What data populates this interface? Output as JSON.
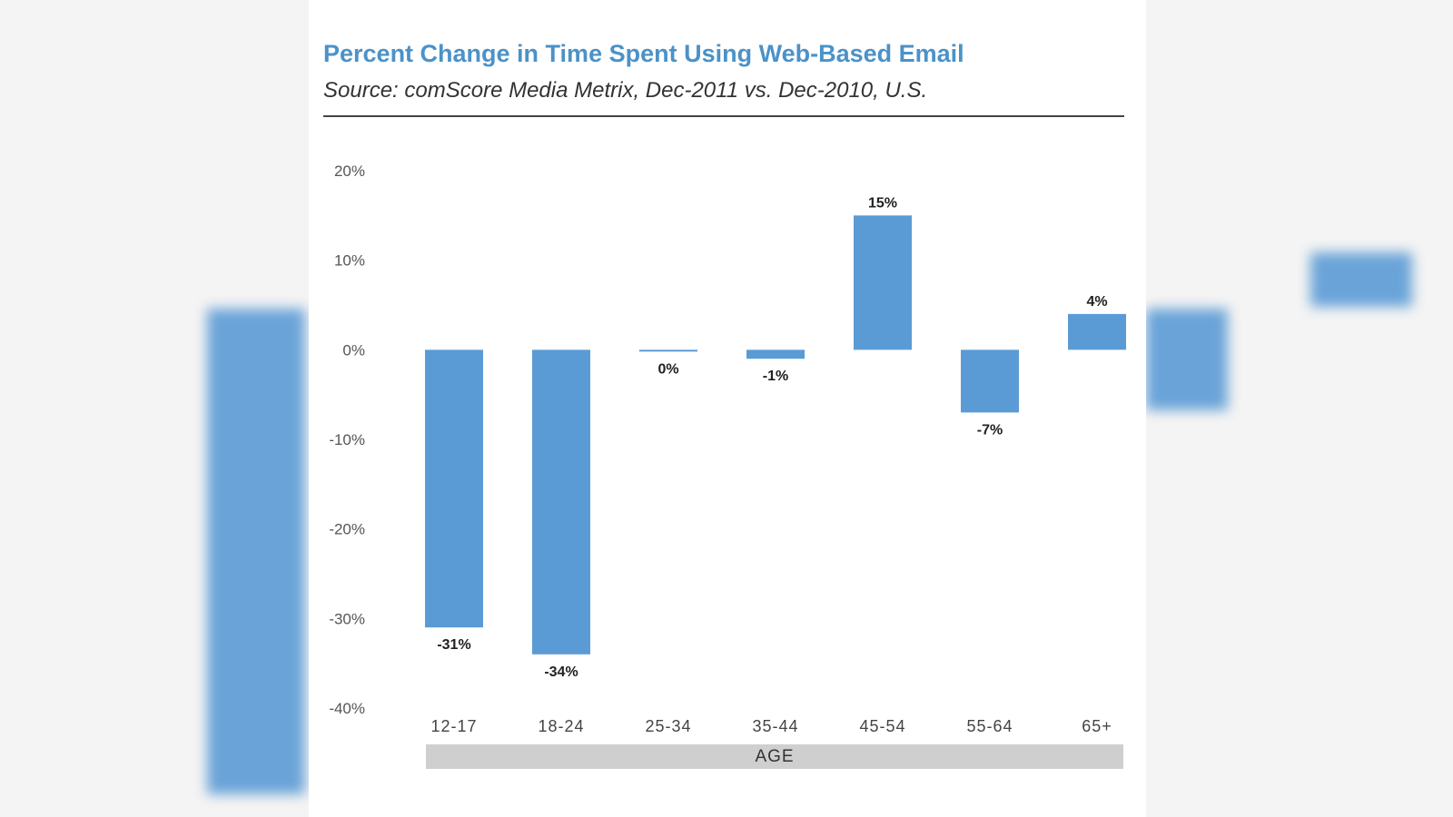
{
  "colors": {
    "bar": "#5b9bd5",
    "title": "#4b92c8",
    "band": "#cfcfcf"
  },
  "chart_data": {
    "type": "bar",
    "title": "Percent Change in Time Spent Using Web-Based Email",
    "subtitle": "Source: comScore Media Metrix, Dec-2011 vs. Dec-2010, U.S.",
    "xlabel": "AGE",
    "ylabel": "",
    "categories": [
      "12-17",
      "18-24",
      "25-34",
      "35-44",
      "45-54",
      "55-64",
      "65+"
    ],
    "values": [
      -31,
      -34,
      0,
      -1,
      15,
      -7,
      4
    ],
    "value_labels": [
      "-31%",
      "-34%",
      "0%",
      "-1%",
      "15%",
      "-7%",
      "4%"
    ],
    "ylim": [
      -40,
      20
    ],
    "yticks": [
      20,
      10,
      0,
      -10,
      -20,
      -30,
      -40
    ],
    "ytick_labels": [
      "20%",
      "10%",
      "0%",
      "-10%",
      "-20%",
      "-30%",
      "-40%"
    ],
    "grid": false,
    "legend": "none"
  }
}
